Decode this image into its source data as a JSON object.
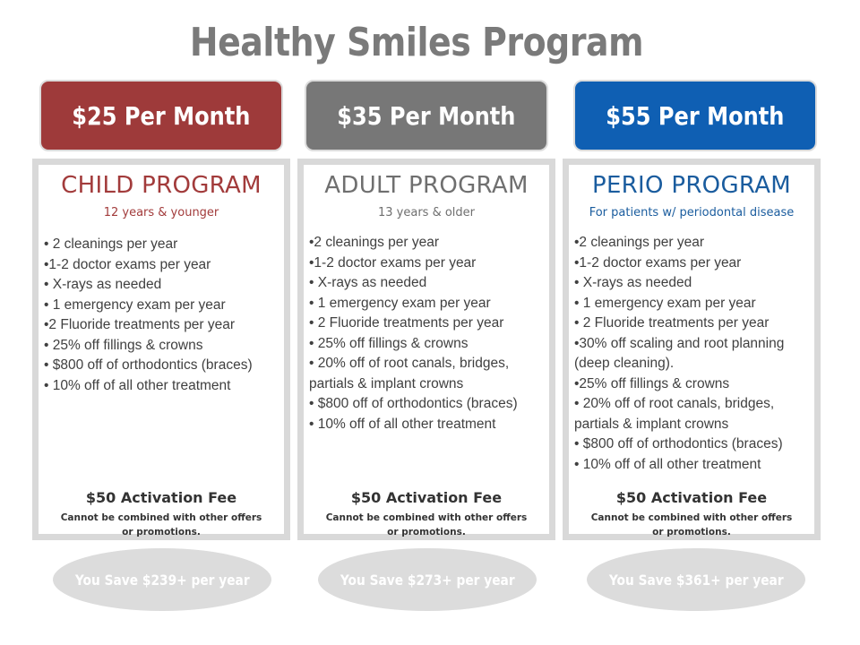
{
  "title": "Healthy Smiles Program",
  "plans": [
    {
      "price": "$25 Per Month",
      "name": "CHILD PROGRAM",
      "subtitle": "12 years & younger",
      "features": [
        "• 2 cleanings per year",
        "•1-2 doctor exams per year",
        "• X-rays as needed",
        "• 1 emergency exam per year",
        "•2 Fluoride treatments per year",
        "• 25% off fillings & crowns",
        "• $800 off of orthodontics (braces)",
        "• 10% off of all other treatment"
      ],
      "fee": "$50 Activation Fee",
      "note_line1": "Cannot be combined with other offers",
      "note_line2": "or promotions.",
      "savings": "You Save $239+ per year",
      "color": "#9e3a3a"
    },
    {
      "price": "$35 Per Month",
      "name": "ADULT PROGRAM",
      "subtitle": "13 years & older",
      "features": [
        "•2 cleanings per year",
        "•1-2 doctor exams per year",
        "• X-rays as needed",
        "• 1 emergency exam per year",
        "• 2 Fluoride treatments per year",
        "• 25% off fillings & crowns",
        "• 20% off of root canals, bridges, partials & implant crowns",
        "• $800 off of orthodontics (braces)",
        "• 10% off of all other treatment"
      ],
      "fee": "$50 Activation Fee",
      "note_line1": "Cannot be combined with other offers",
      "note_line2": "or promotions.",
      "savings": "You Save $273+ per year",
      "color": "#777777"
    },
    {
      "price": "$55 Per Month",
      "name": "PERIO PROGRAM",
      "subtitle": "For patients w/ periodontal disease",
      "features": [
        "•2 cleanings per year",
        "•1-2 doctor exams per year",
        "• X-rays as needed",
        "• 1 emergency exam per year",
        "• 2 Fluoride treatments per year",
        "•30% off scaling and root planning (deep cleaning).",
        "•25% off fillings & crowns",
        "• 20% off of root canals, bridges, partials & implant crowns",
        "• $800 off of orthodontics (braces)",
        "• 10% off of all other treatment"
      ],
      "fee": "$50 Activation Fee",
      "note_line1": "Cannot be combined with other offers",
      "note_line2": "or promotions.",
      "savings": "You Save $361+ per year",
      "color": "#0f5fb3"
    }
  ]
}
